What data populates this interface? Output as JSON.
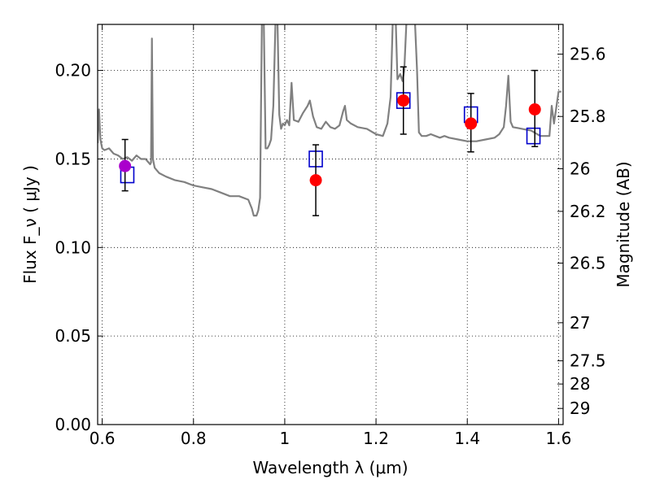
{
  "chart_data": {
    "type": "scatter",
    "xlabel": "Wavelength  λ (μm)",
    "ylabel": "Flux  F_ν  ( μJy )",
    "ylabel_right": "Magnitude (AB)",
    "xlim": [
      0.59,
      1.61
    ],
    "ylim": [
      0.0,
      0.226
    ],
    "grid": true,
    "x_ticks": [
      0.6,
      0.8,
      1.0,
      1.2,
      1.4,
      1.6
    ],
    "x_tick_labels": [
      "0.6",
      "0.8",
      "1",
      "1.2",
      "1.4",
      "1.6"
    ],
    "y_ticks": [
      0.0,
      0.05,
      0.1,
      0.15,
      0.2
    ],
    "y_tick_labels": [
      "0.00",
      "0.05",
      "0.10",
      "0.15",
      "0.20"
    ],
    "right_ticks": [
      {
        "label": "25.6",
        "flux": 0.2092
      },
      {
        "label": "25.8",
        "flux": 0.174
      },
      {
        "label": "26",
        "flux": 0.1445
      },
      {
        "label": "26.2",
        "flux": 0.1204
      },
      {
        "label": "26.5",
        "flux": 0.0912
      },
      {
        "label": "27",
        "flux": 0.0575
      },
      {
        "label": "27.5",
        "flux": 0.036
      },
      {
        "label": "28",
        "flux": 0.0229
      },
      {
        "label": "29",
        "flux": 0.0091
      }
    ],
    "series": [
      {
        "kind": "line",
        "color": "#808080",
        "points": [
          [
            0.59,
            0.159
          ],
          [
            0.593,
            0.178
          ],
          [
            0.596,
            0.161
          ],
          [
            0.6,
            0.156
          ],
          [
            0.605,
            0.155
          ],
          [
            0.615,
            0.156
          ],
          [
            0.625,
            0.153
          ],
          [
            0.635,
            0.152
          ],
          [
            0.645,
            0.15
          ],
          [
            0.655,
            0.151
          ],
          [
            0.665,
            0.149
          ],
          [
            0.675,
            0.152
          ],
          [
            0.685,
            0.15
          ],
          [
            0.695,
            0.15
          ],
          [
            0.705,
            0.147
          ],
          [
            0.707,
            0.148
          ],
          [
            0.709,
            0.218
          ],
          [
            0.711,
            0.15
          ],
          [
            0.715,
            0.145
          ],
          [
            0.725,
            0.142
          ],
          [
            0.74,
            0.14
          ],
          [
            0.76,
            0.138
          ],
          [
            0.78,
            0.137
          ],
          [
            0.8,
            0.135
          ],
          [
            0.82,
            0.134
          ],
          [
            0.84,
            0.133
          ],
          [
            0.86,
            0.131
          ],
          [
            0.88,
            0.129
          ],
          [
            0.9,
            0.129
          ],
          [
            0.92,
            0.127
          ],
          [
            0.928,
            0.122
          ],
          [
            0.932,
            0.118
          ],
          [
            0.938,
            0.118
          ],
          [
            0.942,
            0.121
          ],
          [
            0.946,
            0.128
          ],
          [
            0.95,
            0.23
          ],
          [
            0.954,
            0.23
          ],
          [
            0.958,
            0.156
          ],
          [
            0.962,
            0.156
          ],
          [
            0.966,
            0.158
          ],
          [
            0.97,
            0.161
          ],
          [
            0.975,
            0.18
          ],
          [
            0.98,
            0.23
          ],
          [
            0.984,
            0.23
          ],
          [
            0.988,
            0.175
          ],
          [
            0.992,
            0.167
          ],
          [
            0.996,
            0.17
          ],
          [
            1.0,
            0.169
          ],
          [
            1.005,
            0.172
          ],
          [
            1.01,
            0.169
          ],
          [
            1.015,
            0.193
          ],
          [
            1.02,
            0.172
          ],
          [
            1.03,
            0.171
          ],
          [
            1.04,
            0.176
          ],
          [
            1.05,
            0.18
          ],
          [
            1.055,
            0.183
          ],
          [
            1.062,
            0.174
          ],
          [
            1.07,
            0.168
          ],
          [
            1.08,
            0.167
          ],
          [
            1.09,
            0.171
          ],
          [
            1.1,
            0.168
          ],
          [
            1.11,
            0.167
          ],
          [
            1.12,
            0.169
          ],
          [
            1.128,
            0.177
          ],
          [
            1.132,
            0.18
          ],
          [
            1.136,
            0.172
          ],
          [
            1.145,
            0.17
          ],
          [
            1.16,
            0.168
          ],
          [
            1.18,
            0.167
          ],
          [
            1.2,
            0.164
          ],
          [
            1.215,
            0.163
          ],
          [
            1.225,
            0.17
          ],
          [
            1.232,
            0.185
          ],
          [
            1.237,
            0.23
          ],
          [
            1.243,
            0.23
          ],
          [
            1.247,
            0.195
          ],
          [
            1.253,
            0.198
          ],
          [
            1.258,
            0.194
          ],
          [
            1.262,
            0.2
          ],
          [
            1.267,
            0.23
          ],
          [
            1.285,
            0.23
          ],
          [
            1.29,
            0.2
          ],
          [
            1.294,
            0.165
          ],
          [
            1.3,
            0.163
          ],
          [
            1.31,
            0.163
          ],
          [
            1.32,
            0.164
          ],
          [
            1.33,
            0.163
          ],
          [
            1.34,
            0.162
          ],
          [
            1.35,
            0.163
          ],
          [
            1.36,
            0.162
          ],
          [
            1.38,
            0.161
          ],
          [
            1.4,
            0.16
          ],
          [
            1.42,
            0.16
          ],
          [
            1.44,
            0.161
          ],
          [
            1.46,
            0.162
          ],
          [
            1.47,
            0.164
          ],
          [
            1.48,
            0.168
          ],
          [
            1.485,
            0.18
          ],
          [
            1.49,
            0.197
          ],
          [
            1.495,
            0.171
          ],
          [
            1.5,
            0.168
          ],
          [
            1.52,
            0.167
          ],
          [
            1.54,
            0.166
          ],
          [
            1.56,
            0.163
          ],
          [
            1.58,
            0.163
          ],
          [
            1.585,
            0.18
          ],
          [
            1.59,
            0.17
          ],
          [
            1.6,
            0.188
          ],
          [
            1.606,
            0.188
          ]
        ]
      },
      {
        "kind": "open-square",
        "color": "#0000cc",
        "points": [
          [
            0.655,
            0.141
          ],
          [
            1.068,
            0.15
          ],
          [
            1.26,
            0.183
          ],
          [
            1.408,
            0.175
          ],
          [
            1.545,
            0.163
          ]
        ]
      },
      {
        "kind": "circle",
        "color": "#ff0000",
        "points": [
          [
            1.068,
            0.138
          ],
          [
            1.26,
            0.183
          ],
          [
            1.408,
            0.17
          ],
          [
            1.548,
            0.178
          ]
        ],
        "errors": [
          [
            0.02,
            0.02
          ],
          [
            0.019,
            0.019
          ],
          [
            0.016,
            0.017
          ],
          [
            0.021,
            0.022
          ]
        ]
      },
      {
        "kind": "circle",
        "color": "#aa00cc",
        "points": [
          [
            0.65,
            0.146
          ]
        ],
        "errors": [
          [
            0.014,
            0.015
          ]
        ]
      }
    ]
  }
}
